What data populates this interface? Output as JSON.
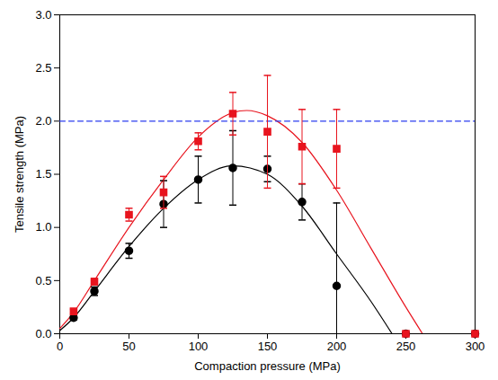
{
  "chart_data": {
    "type": "scatter",
    "xlabel": "Compaction pressure (MPa)",
    "ylabel": "Tensile strength (MPa)",
    "xlim": [
      0,
      300
    ],
    "ylim": [
      0,
      3
    ],
    "xticks": [
      0,
      50,
      100,
      150,
      200,
      250,
      300
    ],
    "yticks": [
      {
        "value": 0,
        "label": "0.0"
      },
      {
        "value": 0.5,
        "label": "0.5"
      },
      {
        "value": 1,
        "label": "1.0"
      },
      {
        "value": 1.5,
        "label": "1.5"
      },
      {
        "value": 2,
        "label": "2.0"
      },
      {
        "value": 2.5,
        "label": "2.5"
      },
      {
        "value": 3,
        "label": "3.0"
      }
    ],
    "series": [
      {
        "type": "line",
        "color": "#e8141e",
        "x": [
          0,
          10,
          25,
          50,
          75,
          100,
          125,
          135,
          150,
          175,
          200,
          225,
          250,
          262
        ],
        "values": [
          0.05,
          0.2,
          0.5,
          1.0,
          1.45,
          1.85,
          2.08,
          2.1,
          2.05,
          1.8,
          1.35,
          0.8,
          0.25,
          0
        ]
      },
      {
        "type": "line",
        "color": "#000000",
        "x": [
          0,
          10,
          25,
          50,
          75,
          100,
          125,
          150,
          175,
          200,
          225,
          240
        ],
        "values": [
          0.03,
          0.15,
          0.4,
          0.82,
          1.18,
          1.45,
          1.58,
          1.5,
          1.2,
          0.75,
          0.3,
          0
        ]
      },
      {
        "type": "line",
        "color": "#2b3cf0",
        "line_style": "dashed",
        "x": [
          0,
          300
        ],
        "values": [
          2,
          2
        ]
      },
      {
        "type": "scatter",
        "color": "#000000",
        "marker": "circle",
        "x": [
          10,
          25,
          50,
          75,
          100,
          125,
          150,
          175,
          200,
          250,
          300
        ],
        "values": [
          0.15,
          0.4,
          0.78,
          1.22,
          1.45,
          1.56,
          1.55,
          1.24,
          0.45,
          0,
          0
        ],
        "errors": [
          0.02,
          0.04,
          0.07,
          0.22,
          0.22,
          0.35,
          0.12,
          0.17,
          0.78,
          0,
          0
        ]
      },
      {
        "type": "scatter",
        "color": "#e8141e",
        "marker": "square",
        "x": [
          10,
          25,
          50,
          75,
          100,
          125,
          150,
          175,
          200,
          250,
          300
        ],
        "values": [
          0.21,
          0.49,
          1.12,
          1.33,
          1.81,
          2.07,
          1.9,
          1.76,
          1.74,
          0,
          0
        ],
        "errors": [
          0.02,
          0.03,
          0.06,
          0.15,
          0.08,
          0.2,
          0.53,
          0.35,
          0.37,
          0,
          0
        ]
      }
    ]
  }
}
